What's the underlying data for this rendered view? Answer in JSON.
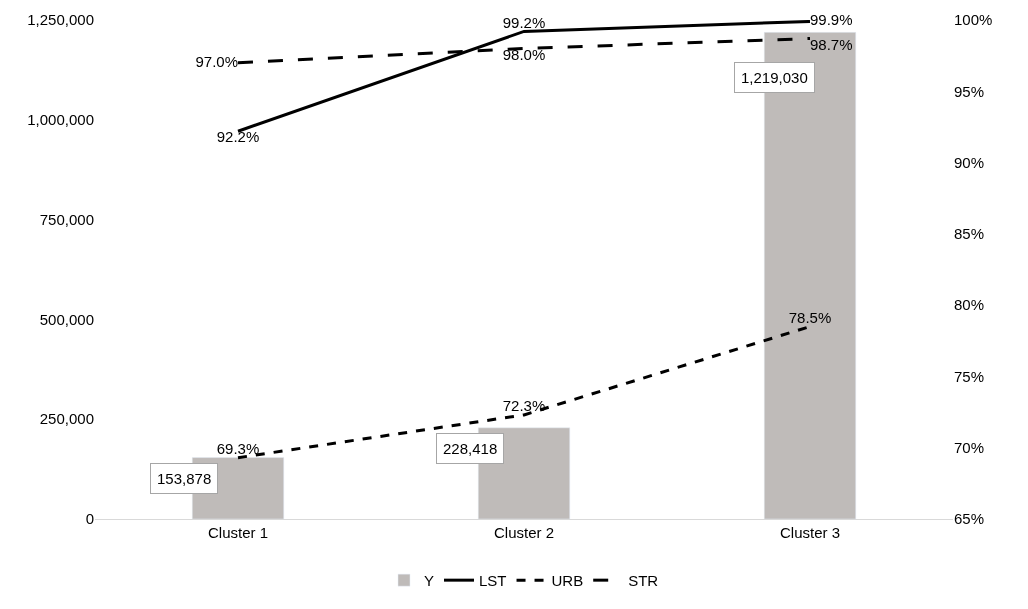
{
  "chart_data": {
    "type": "bar",
    "categories": [
      "Cluster 1",
      "Cluster 2",
      "Cluster 3"
    ],
    "series": [
      {
        "name": "Y",
        "color": "#bfbbb9",
        "values": [
          153878,
          228418,
          1219030
        ],
        "value_labels": [
          "153,878",
          "228,418",
          "1,219,030"
        ]
      },
      {
        "name": "LST",
        "type": "line",
        "axis": "y2",
        "color": "#000000",
        "line_style": "solid",
        "values": [
          92.2,
          99.2,
          99.9
        ],
        "value_labels": [
          "92.2%",
          "99.2%",
          "99.9%"
        ]
      },
      {
        "name": "URB",
        "type": "line",
        "axis": "y2",
        "color": "#000000",
        "line_style": "dotted",
        "values": [
          69.3,
          72.3,
          78.5
        ],
        "value_labels": [
          "69.3%",
          "72.3%",
          "78.5%"
        ]
      },
      {
        "name": "STR",
        "type": "line",
        "axis": "y2",
        "color": "#000000",
        "line_style": "dashed",
        "values": [
          97.0,
          98.0,
          98.7
        ],
        "value_labels": [
          "97.0%",
          "98.0%",
          "98.7%"
        ]
      }
    ],
    "ylim": [
      0,
      1250000
    ],
    "yticks": [
      {
        "value": 0,
        "label": "0"
      },
      {
        "value": 250000,
        "label": "250,000"
      },
      {
        "value": 500000,
        "label": "500,000"
      },
      {
        "value": 750000,
        "label": "750,000"
      },
      {
        "value": 1000000,
        "label": "1,000,000"
      },
      {
        "value": 1250000,
        "label": "1,250,000"
      }
    ],
    "y2lim": [
      65,
      100
    ],
    "y2ticks": [
      {
        "value": 65,
        "label": "65%"
      },
      {
        "value": 70,
        "label": "70%"
      },
      {
        "value": 75,
        "label": "75%"
      },
      {
        "value": 80,
        "label": "80%"
      },
      {
        "value": 85,
        "label": "85%"
      },
      {
        "value": 90,
        "label": "90%"
      },
      {
        "value": 95,
        "label": "95%"
      },
      {
        "value": 100,
        "label": "100%"
      }
    ],
    "legend": "bottom",
    "marker": "none"
  }
}
